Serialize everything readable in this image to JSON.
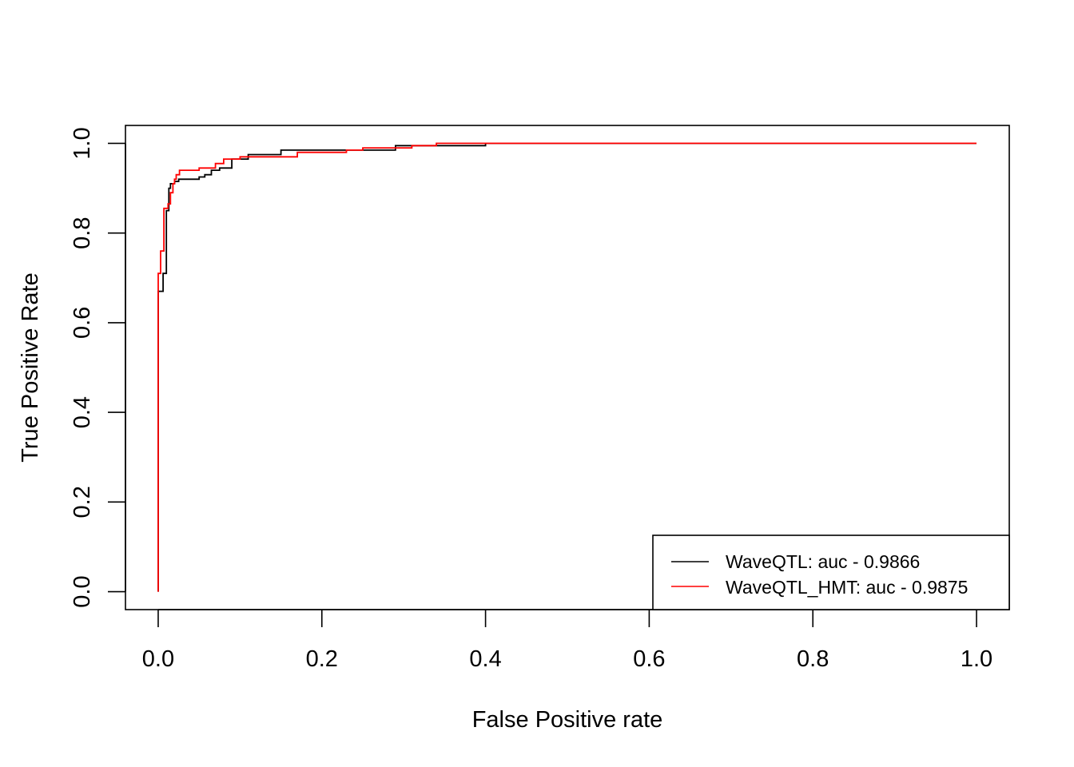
{
  "chart_data": {
    "type": "line",
    "title": "",
    "xlabel": "False Positive rate",
    "ylabel": "True Positive Rate",
    "xlim": [
      -0.04,
      1.04
    ],
    "ylim": [
      -0.04,
      1.04
    ],
    "x_ticks": [
      0.0,
      0.2,
      0.4,
      0.6,
      0.8,
      1.0
    ],
    "x_tick_labels": [
      "0.0",
      "0.2",
      "0.4",
      "0.6",
      "0.8",
      "1.0"
    ],
    "y_ticks": [
      0.0,
      0.2,
      0.4,
      0.6,
      0.8,
      1.0
    ],
    "y_tick_labels": [
      "0.0",
      "0.2",
      "0.4",
      "0.6",
      "0.8",
      "1.0"
    ],
    "grid": false,
    "legend": {
      "position": "bottom-right",
      "entries": [
        {
          "label": "WaveQTL: auc - 0.9866",
          "color": "#000000"
        },
        {
          "label": "WaveQTL_HMT: auc - 0.9875",
          "color": "#ff0000"
        }
      ]
    },
    "series": [
      {
        "name": "WaveQTL: auc - 0.9866",
        "color": "#000000",
        "x": [
          0.0,
          0.0,
          0.0,
          0.003,
          0.003,
          0.006,
          0.006,
          0.01,
          0.01,
          0.013,
          0.013,
          0.015,
          0.015,
          0.02,
          0.02,
          0.025,
          0.025,
          0.03,
          0.03,
          0.05,
          0.05,
          0.057,
          0.057,
          0.065,
          0.065,
          0.075,
          0.075,
          0.09,
          0.09,
          0.11,
          0.11,
          0.15,
          0.15,
          0.29,
          0.29,
          0.4,
          0.4,
          1.0
        ],
        "y": [
          0.0,
          0.67,
          0.67,
          0.67,
          0.67,
          0.67,
          0.71,
          0.71,
          0.85,
          0.85,
          0.9,
          0.9,
          0.91,
          0.91,
          0.915,
          0.915,
          0.92,
          0.92,
          0.92,
          0.92,
          0.925,
          0.925,
          0.93,
          0.93,
          0.94,
          0.94,
          0.945,
          0.945,
          0.965,
          0.965,
          0.975,
          0.975,
          0.985,
          0.985,
          0.995,
          0.995,
          1.0,
          1.0
        ]
      },
      {
        "name": "WaveQTL_HMT: auc - 0.9875",
        "color": "#ff0000",
        "x": [
          0.0,
          0.0,
          0.0,
          0.003,
          0.003,
          0.007,
          0.007,
          0.012,
          0.012,
          0.015,
          0.015,
          0.018,
          0.018,
          0.02,
          0.02,
          0.022,
          0.022,
          0.026,
          0.026,
          0.05,
          0.05,
          0.07,
          0.07,
          0.08,
          0.08,
          0.1,
          0.1,
          0.14,
          0.14,
          0.17,
          0.17,
          0.23,
          0.23,
          0.25,
          0.25,
          0.31,
          0.31,
          0.34,
          0.34,
          1.0
        ],
        "y": [
          0.0,
          0.67,
          0.71,
          0.71,
          0.76,
          0.76,
          0.855,
          0.855,
          0.865,
          0.865,
          0.89,
          0.89,
          0.91,
          0.91,
          0.92,
          0.92,
          0.93,
          0.93,
          0.94,
          0.94,
          0.945,
          0.945,
          0.955,
          0.955,
          0.965,
          0.965,
          0.97,
          0.97,
          0.97,
          0.97,
          0.98,
          0.98,
          0.985,
          0.985,
          0.99,
          0.99,
          0.995,
          0.995,
          1.0,
          1.0
        ]
      }
    ]
  }
}
